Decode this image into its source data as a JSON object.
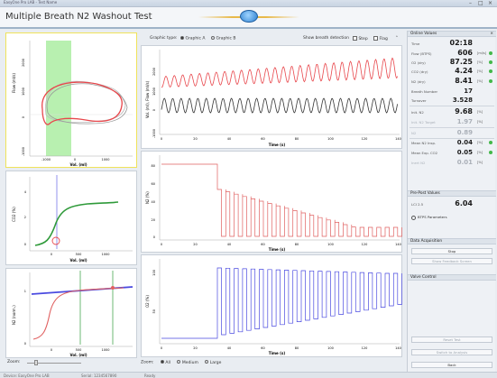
{
  "window": {
    "titlebar_text": "EasyOne Pro LAB - Test Name",
    "title": "Multiple Breath N2 Washout Test",
    "controls": [
      "–",
      "□",
      "×"
    ]
  },
  "toolbar": {
    "graphic_type_label": "Graphic type:",
    "graphic_a": "Graphic A",
    "graphic_b": "Graphic B",
    "show_breath_label": "Show breath detection",
    "step_label": "Step",
    "flag_label": "Flag"
  },
  "left_charts": {
    "flow_volume": {
      "ylabel": "Flow (ml/s)",
      "xlabel": "Vol. (ml)",
      "yticks": [
        "2000",
        "1000",
        "0",
        "-1000"
      ],
      "xticks": [
        "-1000",
        "0",
        "1000"
      ]
    },
    "co2": {
      "ylabel": "CO2 (%)",
      "xlabel": "Vol. (ml)",
      "yticks": [
        "4",
        "2",
        "0"
      ],
      "xticks": [
        "0",
        "500",
        "1000"
      ]
    },
    "n2": {
      "ylabel": "N2 (norm.)",
      "xlabel": "Vol. (ml)",
      "yticks": [
        "1",
        "0"
      ],
      "xticks": [
        "0",
        "500",
        "1000"
      ]
    }
  },
  "center_charts": {
    "top": {
      "ylabel": "Vol. (ml), Flow (ml/s)",
      "xlabel": "Time (s)",
      "yticks": [
        "2000",
        "1000",
        "0",
        "-1000"
      ]
    },
    "mid": {
      "ylabel": "N2 (%)",
      "xlabel": "Time (s)",
      "yticks": [
        "80",
        "60",
        "40",
        "20",
        "0"
      ]
    },
    "bot": {
      "ylabel": "O2 (%)",
      "xlabel": "Time (s)",
      "yticks": [
        "100",
        "50"
      ]
    },
    "xticks": [
      "0",
      "20",
      "40",
      "60",
      "80",
      "100",
      "120",
      "140"
    ]
  },
  "zoom": {
    "left_label": "Zoom:",
    "right_label": "Zoom:",
    "all": "All",
    "medium": "Medium",
    "large": "Large"
  },
  "online_values": {
    "header": "Online Values",
    "rows": [
      {
        "label": "Time",
        "value": "02:18",
        "unit": "",
        "dot": false,
        "dim": false
      },
      {
        "label": "Flow (BTPS)",
        "value": "606",
        "unit": "[ml/s]",
        "dot": true,
        "dim": false
      },
      {
        "label": "O2 (dry)",
        "value": "87.25",
        "unit": "[%]",
        "dot": true,
        "dim": false
      },
      {
        "label": "CO2 (dry)",
        "value": "4.24",
        "unit": "[%]",
        "dot": true,
        "dim": false
      },
      {
        "label": "N2 (dry)",
        "value": "8.41",
        "unit": "[%]",
        "dot": true,
        "dim": false
      },
      {
        "label": "Breath Number",
        "value": "17",
        "unit": "",
        "dot": false,
        "dim": false
      },
      {
        "label": "Turnover",
        "value": "3.528",
        "unit": "",
        "dot": false,
        "dim": false
      },
      {
        "label": "Init. N2",
        "value": "9.68",
        "unit": "[%]",
        "dot": false,
        "dim": false
      },
      {
        "label": "Init. N2 Target",
        "value": "1.97",
        "unit": "[%]",
        "dot": false,
        "dim": true
      },
      {
        "label": "N2",
        "value": "0.89",
        "unit": "",
        "dot": false,
        "dim": true
      },
      {
        "label": "Mean N2 Insp.",
        "value": "0.04",
        "unit": "[%]",
        "dot": true,
        "dim": false
      },
      {
        "label": "Mean Exp. CO2",
        "value": "0.05",
        "unit": "[%]",
        "dot": true,
        "dim": false
      },
      {
        "label": "Inert N2",
        "value": "0.01",
        "unit": "[%]",
        "dot": false,
        "dim": true
      }
    ]
  },
  "pre_post": {
    "header": "Pre-Post Values",
    "rows": [
      {
        "label": "LCI 2.5",
        "value": "6.04",
        "unit": ""
      }
    ],
    "btps_label": "BTPS Parameters"
  },
  "data_acquisition": {
    "header": "Data Acquisition",
    "stop_button": "Stop",
    "feedback_button": "Show Feedback Screen"
  },
  "valve_control": {
    "header": "Valve Control"
  },
  "footer_buttons": [
    "Reset Test",
    "Switch to Analysis",
    "Back"
  ],
  "statusbar": {
    "left": "Device: EasyOne Pro LAB",
    "mid": "Serial: 1234567890",
    "right": "Ready"
  },
  "colors": {
    "inspiration": "#e8474c",
    "expiration": "#333333",
    "co2": "#2f9a3a",
    "n2": "#e06060",
    "o2": "#4a4ae0",
    "highlight": "#b8f0b0"
  }
}
